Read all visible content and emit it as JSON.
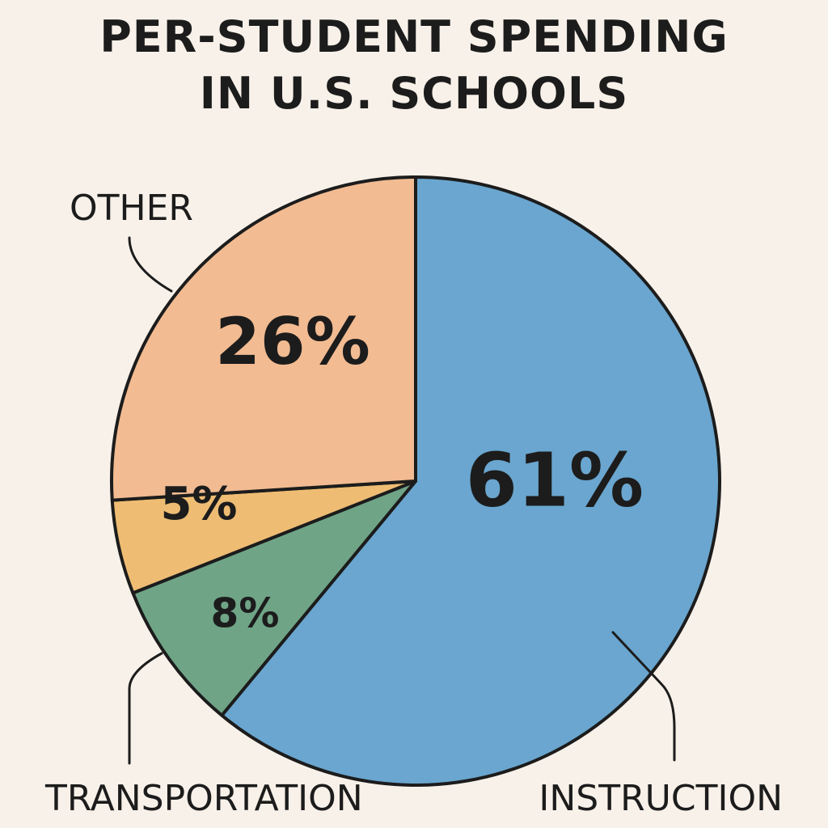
{
  "title_lines": [
    "PER-STUDENT SPENDING",
    "IN U.S. SCHOOLS"
  ],
  "chart_data": {
    "type": "pie",
    "title": "PER-STUDENT SPENDING IN U.S. SCHOOLS",
    "slices": [
      {
        "label": "INSTRUCTION",
        "value": 61,
        "value_label": "61%",
        "color": "#6aa6cf"
      },
      {
        "label": "",
        "value": 8,
        "value_label": "8%",
        "color": "#6fa487"
      },
      {
        "label": "",
        "value": 5,
        "value_label": "5%",
        "color": "#eebd73"
      },
      {
        "label": "OTHER",
        "value": 26,
        "value_label": "26%",
        "color": "#f2bb92"
      }
    ],
    "callout_labels": [
      "OTHER",
      "TRANSPORTATION",
      "INSTRUCTION"
    ],
    "stroke_color": "#1c1c1c",
    "background": "#f8f1e9"
  }
}
